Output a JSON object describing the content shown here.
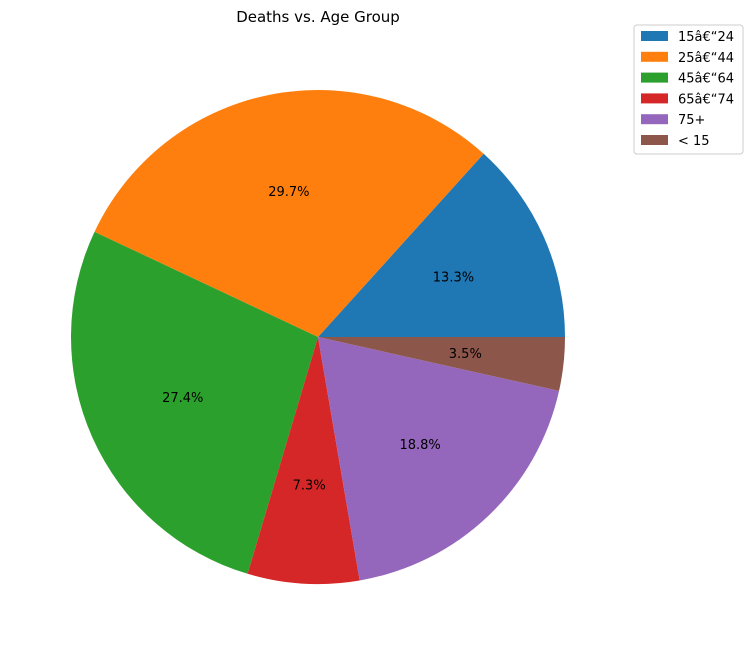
{
  "chart_data": {
    "type": "pie",
    "title": "Deaths vs. Age Group",
    "autopct_decimals": 1,
    "start_angle_deg": 0,
    "direction": "counterclockwise",
    "legend_position": "upper-right",
    "slices": [
      {
        "label": "15â€“24",
        "percent": 13.3,
        "color": "#1f77b4"
      },
      {
        "label": "25â€“44",
        "percent": 29.7,
        "color": "#ff7f0e"
      },
      {
        "label": "45â€“64",
        "percent": 27.4,
        "color": "#2ca02c"
      },
      {
        "label": "65â€“74",
        "percent": 7.3,
        "color": "#d62728"
      },
      {
        "label": "75+",
        "percent": 18.8,
        "color": "#9467bd"
      },
      {
        "label": "< 15",
        "percent": 3.5,
        "color": "#8c564b"
      }
    ]
  }
}
